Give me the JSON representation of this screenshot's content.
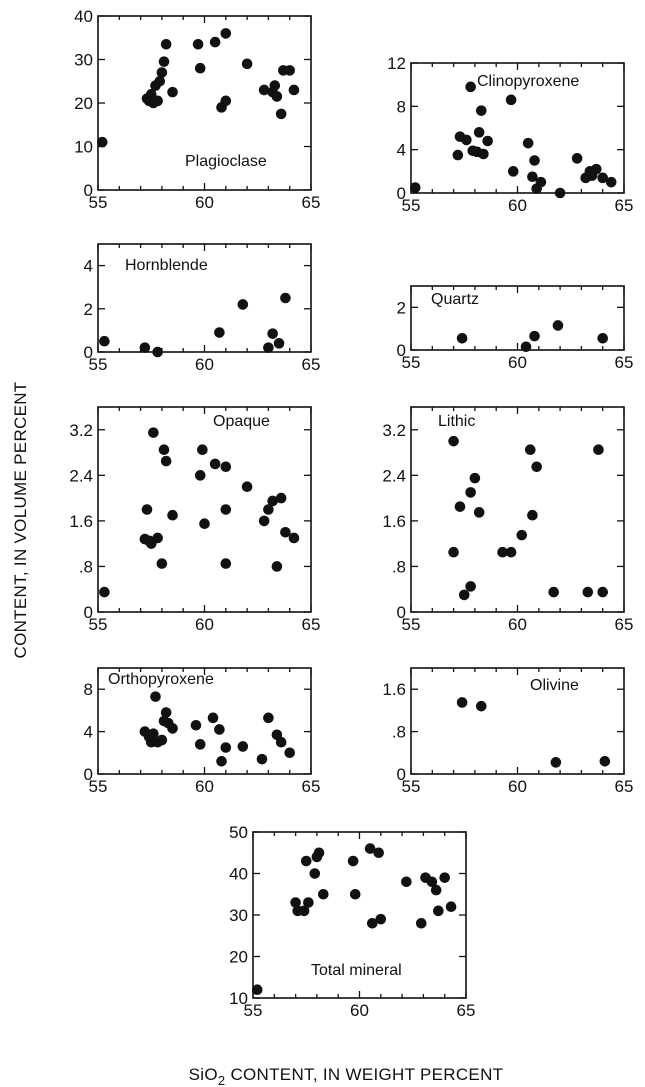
{
  "figure": {
    "ylabel": "CONTENT, IN VOLUME PERCENT",
    "xlabel_pre": "SiO",
    "xlabel_sub": "2",
    "xlabel_post": " CONTENT, IN WEIGHT PERCENT"
  },
  "chart_data": [
    {
      "type": "scatter",
      "label": "Plagioclase",
      "xlim": [
        55,
        65
      ],
      "ylim": [
        0,
        40
      ],
      "xticks": [
        "55",
        "60",
        "65"
      ],
      "yticks": [
        "0",
        "10",
        "20",
        "30",
        "40"
      ],
      "points": [
        [
          55.2,
          11
        ],
        [
          57.3,
          21
        ],
        [
          57.4,
          20.5
        ],
        [
          57.5,
          22
        ],
        [
          57.6,
          20
        ],
        [
          57.7,
          24
        ],
        [
          57.8,
          20.5
        ],
        [
          57.9,
          25
        ],
        [
          58.0,
          27
        ],
        [
          58.1,
          29.5
        ],
        [
          58.2,
          33.5
        ],
        [
          58.5,
          22.5
        ],
        [
          59.7,
          33.5
        ],
        [
          59.8,
          28
        ],
        [
          60.5,
          34
        ],
        [
          60.8,
          19
        ],
        [
          61.0,
          20.5
        ],
        [
          61.0,
          36
        ],
        [
          62.0,
          29
        ],
        [
          62.8,
          23
        ],
        [
          63.2,
          22.5
        ],
        [
          63.3,
          24
        ],
        [
          63.4,
          21.5
        ],
        [
          63.6,
          17.5
        ],
        [
          63.7,
          27.5
        ],
        [
          64.0,
          27.5
        ],
        [
          64.2,
          23
        ]
      ]
    },
    {
      "type": "scatter",
      "label": "Clinopyroxene",
      "xlim": [
        55,
        65
      ],
      "ylim": [
        0,
        12
      ],
      "xticks": [
        "55",
        "60",
        "65"
      ],
      "yticks": [
        "0",
        "4",
        "8",
        "12"
      ],
      "points": [
        [
          55.2,
          0.5
        ],
        [
          57.2,
          3.5
        ],
        [
          57.3,
          5.2
        ],
        [
          57.6,
          4.9
        ],
        [
          57.8,
          9.8
        ],
        [
          57.9,
          3.9
        ],
        [
          58.1,
          3.8
        ],
        [
          58.2,
          5.6
        ],
        [
          58.3,
          7.6
        ],
        [
          58.4,
          3.6
        ],
        [
          58.6,
          4.8
        ],
        [
          59.7,
          8.6
        ],
        [
          59.8,
          2.0
        ],
        [
          60.5,
          4.6
        ],
        [
          60.7,
          1.5
        ],
        [
          60.8,
          3.0
        ],
        [
          60.9,
          0.4
        ],
        [
          61.1,
          1.0
        ],
        [
          62.0,
          0.0
        ],
        [
          62.8,
          3.2
        ],
        [
          63.2,
          1.4
        ],
        [
          63.4,
          2.0
        ],
        [
          63.5,
          1.6
        ],
        [
          63.7,
          2.2
        ],
        [
          64.0,
          1.4
        ],
        [
          64.4,
          1.0
        ]
      ]
    },
    {
      "type": "scatter",
      "label": "Hornblende",
      "xlim": [
        55,
        65
      ],
      "ylim": [
        0,
        5
      ],
      "xticks": [
        "55",
        "60",
        "65"
      ],
      "yticks": [
        "0",
        "2",
        "4"
      ],
      "points": [
        [
          55.3,
          0.5
        ],
        [
          57.2,
          0.2
        ],
        [
          57.8,
          0.0
        ],
        [
          60.7,
          0.9
        ],
        [
          61.8,
          2.2
        ],
        [
          63.0,
          0.2
        ],
        [
          63.2,
          0.85
        ],
        [
          63.5,
          0.4
        ],
        [
          63.8,
          2.5
        ]
      ]
    },
    {
      "type": "scatter",
      "label": "Quartz",
      "xlim": [
        55,
        65
      ],
      "ylim": [
        0,
        3
      ],
      "xticks": [
        "55",
        "60",
        "65"
      ],
      "yticks": [
        "0",
        "2"
      ],
      "points": [
        [
          57.4,
          0.55
        ],
        [
          60.4,
          0.15
        ],
        [
          60.8,
          0.65
        ],
        [
          61.9,
          1.15
        ],
        [
          64.0,
          0.55
        ]
      ]
    },
    {
      "type": "scatter",
      "label": "Opaque",
      "xlim": [
        55,
        65
      ],
      "ylim": [
        0,
        3.6
      ],
      "xticks": [
        "55",
        "60",
        "65"
      ],
      "yticks": [
        "0",
        ".8",
        "1.6",
        "2.4",
        "3.2"
      ],
      "points": [
        [
          55.3,
          0.35
        ],
        [
          57.2,
          1.28
        ],
        [
          57.3,
          1.8
        ],
        [
          57.4,
          1.25
        ],
        [
          57.5,
          1.2
        ],
        [
          57.6,
          3.15
        ],
        [
          57.8,
          1.3
        ],
        [
          58.0,
          0.85
        ],
        [
          58.1,
          2.85
        ],
        [
          58.2,
          2.65
        ],
        [
          58.5,
          1.7
        ],
        [
          59.8,
          2.4
        ],
        [
          59.9,
          2.85
        ],
        [
          60.0,
          1.55
        ],
        [
          60.5,
          2.6
        ],
        [
          61.0,
          2.55
        ],
        [
          61.0,
          1.8
        ],
        [
          61.0,
          0.85
        ],
        [
          62.0,
          2.2
        ],
        [
          62.8,
          1.6
        ],
        [
          63.0,
          1.8
        ],
        [
          63.2,
          1.95
        ],
        [
          63.4,
          0.8
        ],
        [
          63.6,
          2.0
        ],
        [
          63.8,
          1.4
        ],
        [
          64.2,
          1.3
        ]
      ]
    },
    {
      "type": "scatter",
      "label": "Lithic",
      "xlim": [
        55,
        65
      ],
      "ylim": [
        0,
        3.6
      ],
      "xticks": [
        "55",
        "60",
        "65"
      ],
      "yticks": [
        "0",
        ".8",
        "1.6",
        "2.4",
        "3.2"
      ],
      "points": [
        [
          57.0,
          3.0
        ],
        [
          57.0,
          1.05
        ],
        [
          57.3,
          1.85
        ],
        [
          57.5,
          0.3
        ],
        [
          57.8,
          2.1
        ],
        [
          57.8,
          0.45
        ],
        [
          58.0,
          2.35
        ],
        [
          58.2,
          1.75
        ],
        [
          59.3,
          1.05
        ],
        [
          59.7,
          1.05
        ],
        [
          60.2,
          1.35
        ],
        [
          60.6,
          2.85
        ],
        [
          60.7,
          1.7
        ],
        [
          60.9,
          2.55
        ],
        [
          61.7,
          0.35
        ],
        [
          63.3,
          0.35
        ],
        [
          63.8,
          2.85
        ],
        [
          64.0,
          0.35
        ]
      ]
    },
    {
      "type": "scatter",
      "label": "Orthopyroxene",
      "xlim": [
        55,
        65
      ],
      "ylim": [
        0,
        10
      ],
      "xticks": [
        "55",
        "60",
        "65"
      ],
      "yticks": [
        "0",
        "4",
        "8"
      ],
      "points": [
        [
          57.2,
          4.0
        ],
        [
          57.4,
          3.5
        ],
        [
          57.5,
          3.0
        ],
        [
          57.6,
          3.8
        ],
        [
          57.7,
          7.3
        ],
        [
          57.8,
          3.0
        ],
        [
          58.0,
          3.2
        ],
        [
          58.1,
          5.0
        ],
        [
          58.2,
          5.8
        ],
        [
          58.3,
          4.8
        ],
        [
          58.5,
          4.3
        ],
        [
          59.6,
          4.6
        ],
        [
          59.8,
          2.8
        ],
        [
          60.4,
          5.3
        ],
        [
          60.7,
          4.2
        ],
        [
          60.8,
          1.2
        ],
        [
          61.0,
          2.5
        ],
        [
          61.8,
          2.6
        ],
        [
          62.7,
          1.4
        ],
        [
          63.0,
          5.3
        ],
        [
          63.4,
          3.7
        ],
        [
          63.6,
          3.0
        ],
        [
          64.0,
          2.0
        ]
      ]
    },
    {
      "type": "scatter",
      "label": "Olivine",
      "xlim": [
        55,
        65
      ],
      "ylim": [
        0,
        2
      ],
      "xticks": [
        "55",
        "60",
        "65"
      ],
      "yticks": [
        "0",
        ".8",
        "1.6"
      ],
      "points": [
        [
          57.4,
          1.35
        ],
        [
          58.3,
          1.28
        ],
        [
          61.8,
          0.22
        ],
        [
          64.1,
          0.24
        ]
      ]
    },
    {
      "type": "scatter",
      "label": "Total mineral",
      "xlim": [
        55,
        65
      ],
      "ylim": [
        10,
        50
      ],
      "xticks": [
        "55",
        "60",
        "65"
      ],
      "yticks": [
        "10",
        "20",
        "30",
        "40",
        "50"
      ],
      "points": [
        [
          55.2,
          12
        ],
        [
          57.0,
          33
        ],
        [
          57.1,
          31
        ],
        [
          57.4,
          31
        ],
        [
          57.5,
          43
        ],
        [
          57.6,
          33
        ],
        [
          57.9,
          40
        ],
        [
          58.0,
          44
        ],
        [
          58.1,
          45
        ],
        [
          58.3,
          35
        ],
        [
          59.7,
          43
        ],
        [
          59.8,
          35
        ],
        [
          60.5,
          46
        ],
        [
          60.6,
          28
        ],
        [
          60.9,
          45
        ],
        [
          61.0,
          29
        ],
        [
          62.2,
          38
        ],
        [
          62.9,
          28
        ],
        [
          63.1,
          39
        ],
        [
          63.4,
          38
        ],
        [
          63.6,
          36
        ],
        [
          63.7,
          31
        ],
        [
          64.0,
          39
        ],
        [
          64.3,
          32
        ]
      ]
    }
  ]
}
